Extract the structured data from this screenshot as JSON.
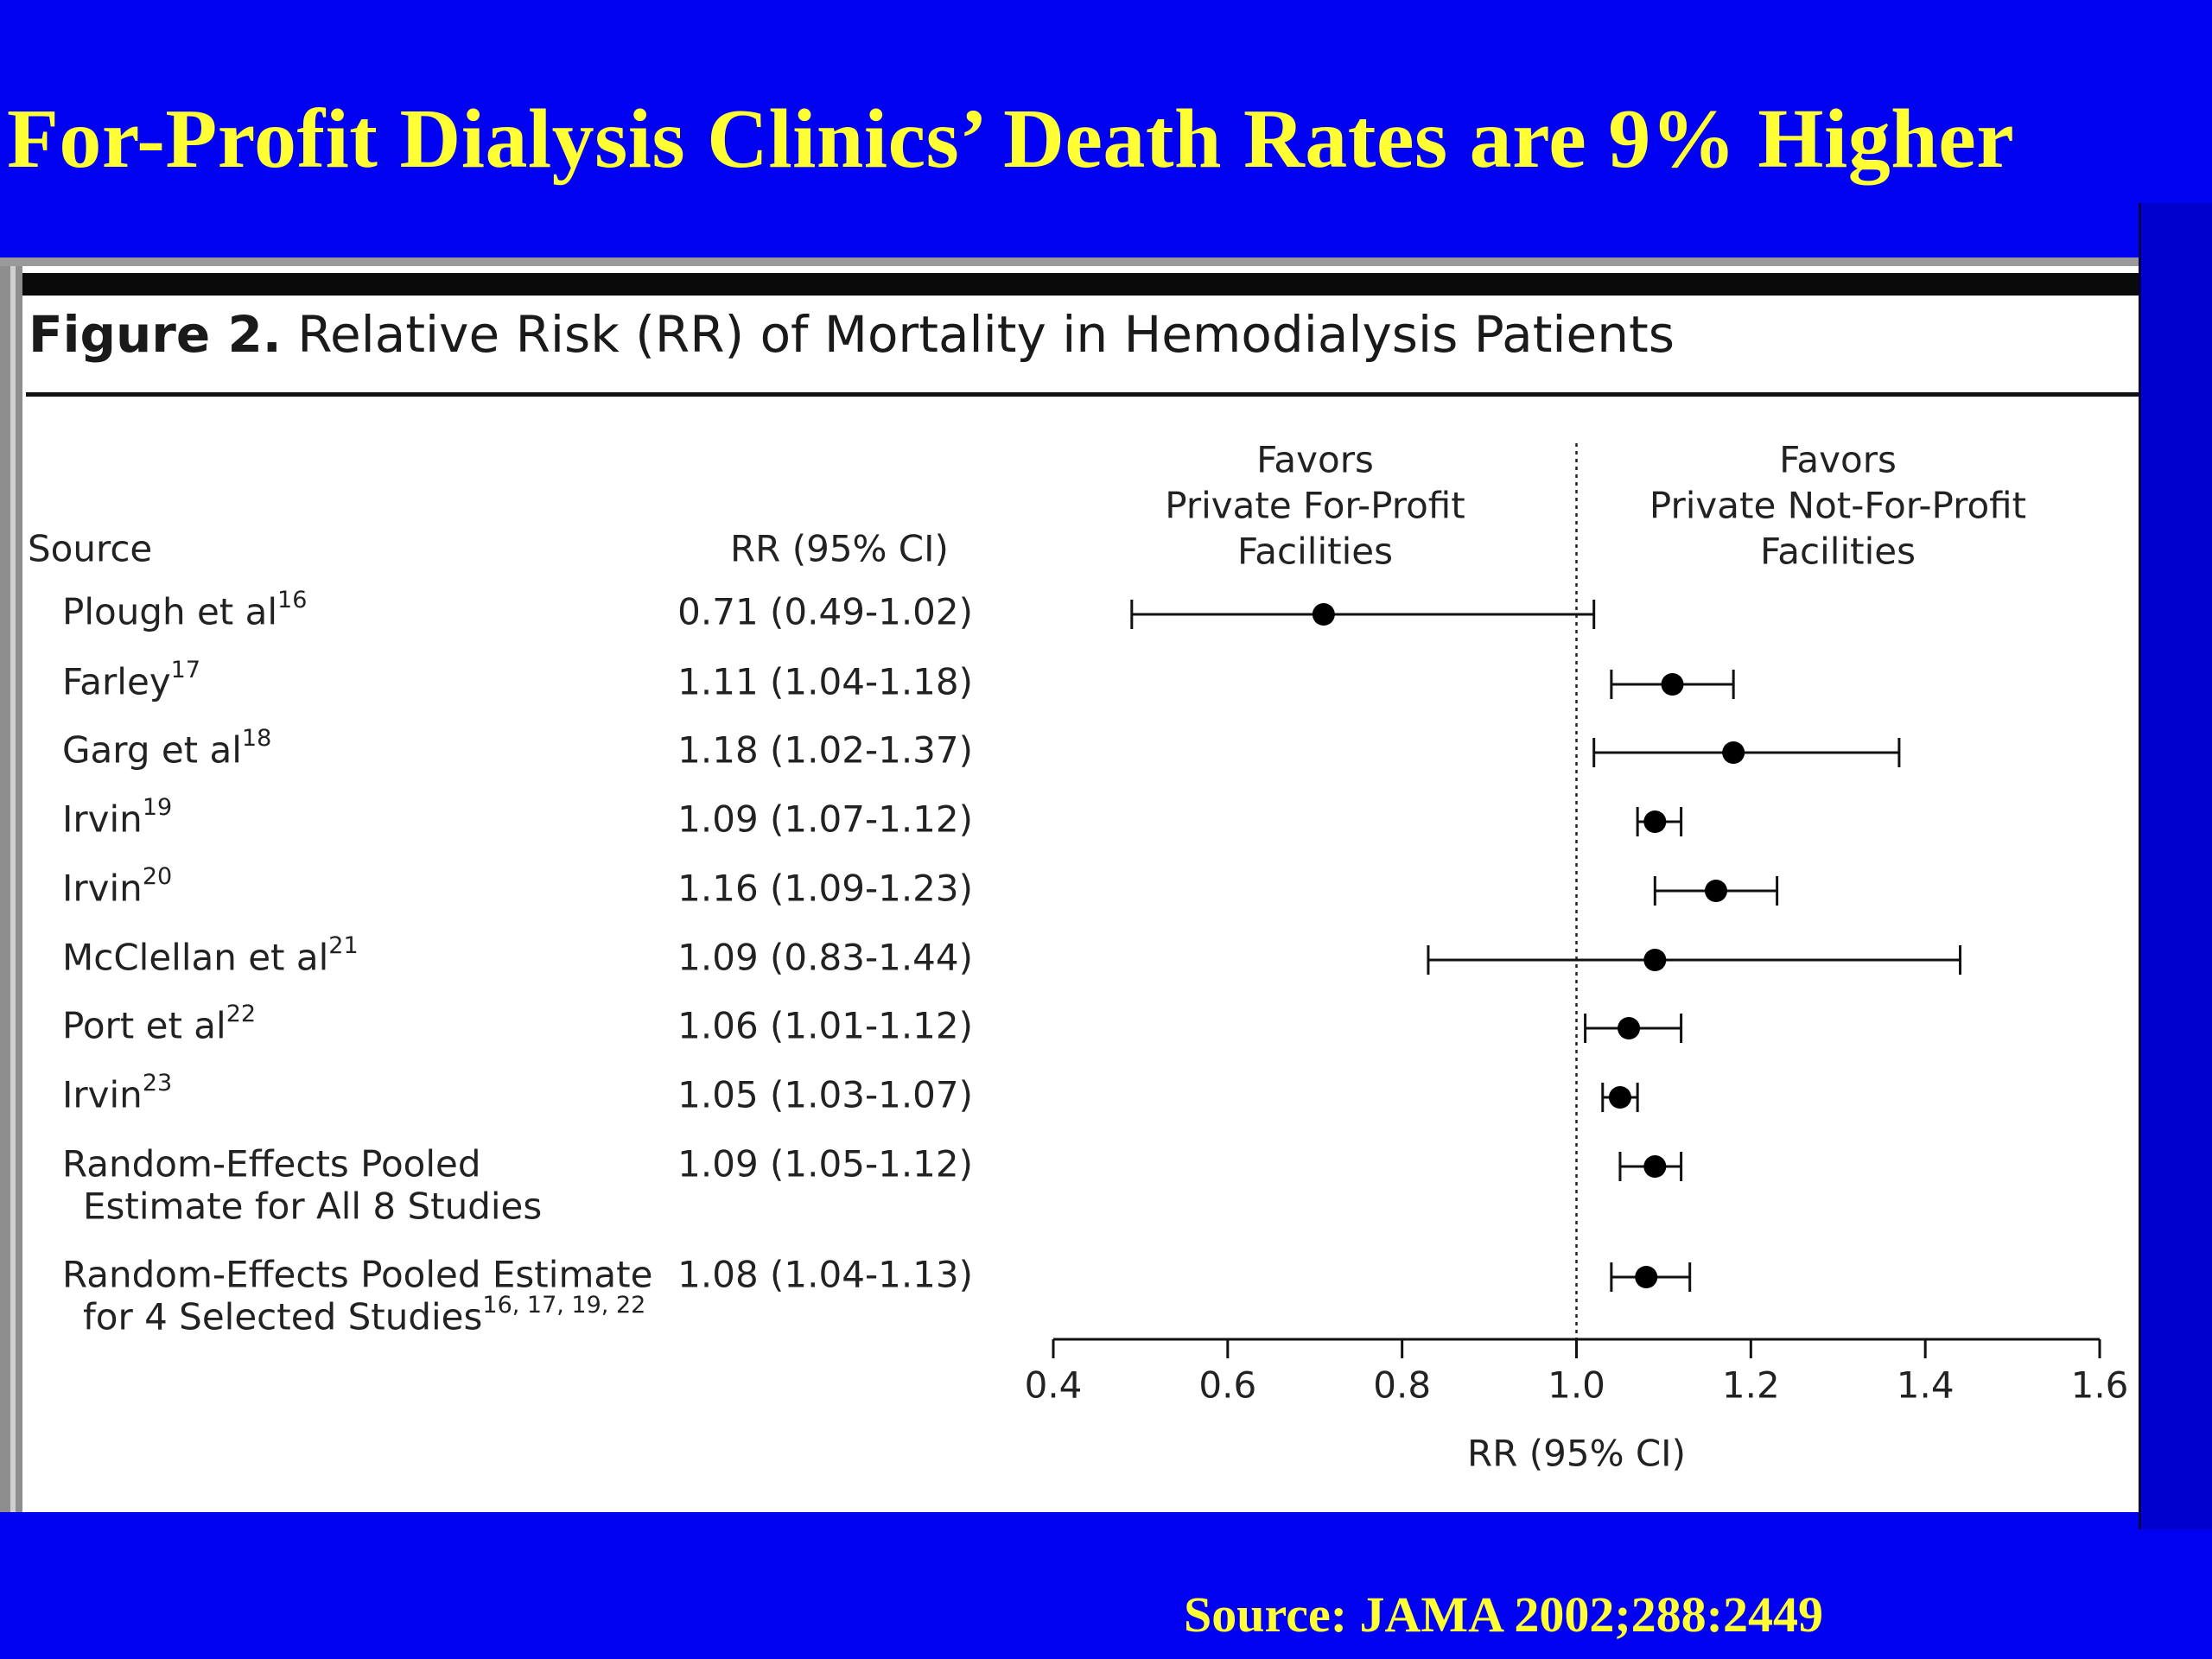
{
  "slide": {
    "title": "For-Profit Dialysis Clinics’ Death Rates are 9% Higher",
    "source": "Source: JAMA 2002;288:2449"
  },
  "figure": {
    "label": "Figure 2.",
    "caption": "Relative Risk (RR) of Mortality in Hemodialysis Patients",
    "col_source": "Source",
    "col_rr": "RR (95% CI)",
    "favors_left": [
      "Favors",
      "Private For-Profit",
      "Facilities"
    ],
    "favors_right": [
      "Favors",
      "Private Not-For-Profit",
      "Facilities"
    ]
  },
  "chart_data": {
    "type": "forest",
    "xlabel": "RR (95% CI)",
    "xlim": [
      0.4,
      1.6
    ],
    "xticks": [
      0.4,
      0.6,
      0.8,
      1.0,
      1.2,
      1.4,
      1.6
    ],
    "xtick_labels": [
      "0.4",
      "0.6",
      "0.8",
      "1.0",
      "1.2",
      "1.4",
      "1.6"
    ],
    "reference_line": 1.0,
    "rows": [
      {
        "source": [
          "Plough et al"
        ],
        "sup": "16",
        "rr_text": "0.71 (0.49-1.02)",
        "rr": 0.71,
        "lo": 0.49,
        "hi": 1.02
      },
      {
        "source": [
          "Farley"
        ],
        "sup": "17",
        "rr_text": "1.11 (1.04-1.18)",
        "rr": 1.11,
        "lo": 1.04,
        "hi": 1.18
      },
      {
        "source": [
          "Garg et al"
        ],
        "sup": "18",
        "rr_text": "1.18 (1.02-1.37)",
        "rr": 1.18,
        "lo": 1.02,
        "hi": 1.37
      },
      {
        "source": [
          "Irvin"
        ],
        "sup": "19",
        "rr_text": "1.09 (1.07-1.12)",
        "rr": 1.09,
        "lo": 1.07,
        "hi": 1.12
      },
      {
        "source": [
          "Irvin"
        ],
        "sup": "20",
        "rr_text": "1.16 (1.09-1.23)",
        "rr": 1.16,
        "lo": 1.09,
        "hi": 1.23
      },
      {
        "source": [
          "McClellan et al"
        ],
        "sup": "21",
        "rr_text": "1.09 (0.83-1.44)",
        "rr": 1.09,
        "lo": 0.83,
        "hi": 1.44
      },
      {
        "source": [
          "Port et al"
        ],
        "sup": "22",
        "rr_text": "1.06 (1.01-1.12)",
        "rr": 1.06,
        "lo": 1.01,
        "hi": 1.12
      },
      {
        "source": [
          "Irvin"
        ],
        "sup": "23",
        "rr_text": "1.05 (1.03-1.07)",
        "rr": 1.05,
        "lo": 1.03,
        "hi": 1.07
      },
      {
        "source": [
          "Random-Effects Pooled",
          "Estimate for All 8 Studies"
        ],
        "sup": "",
        "rr_text": "1.09 (1.05-1.12)",
        "rr": 1.09,
        "lo": 1.05,
        "hi": 1.12
      },
      {
        "source": [
          "Random-Effects Pooled Estimate",
          "for 4 Selected Studies"
        ],
        "sup": "16, 17, 19, 22",
        "rr_text": "1.08 (1.04-1.13)",
        "rr": 1.08,
        "lo": 1.04,
        "hi": 1.13
      }
    ]
  }
}
